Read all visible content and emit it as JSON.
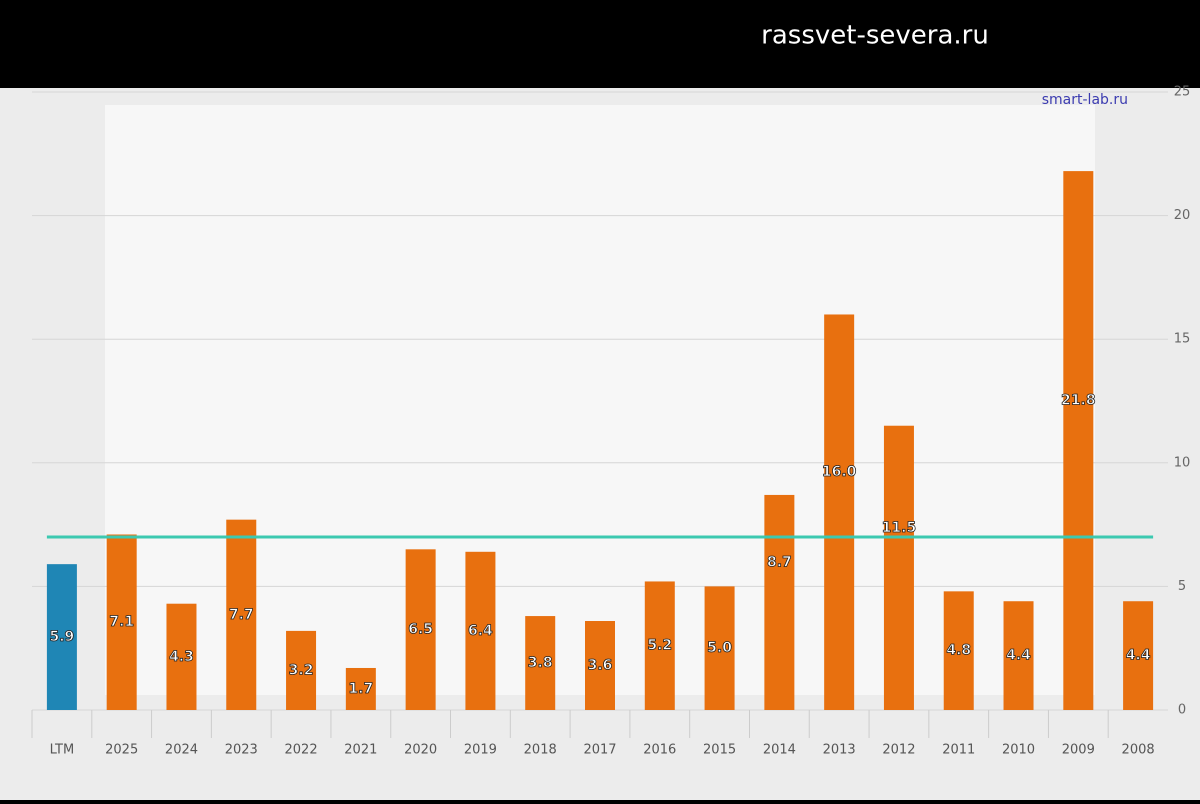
{
  "watermark": "rassvet-severa.ru",
  "chart_data": {
    "type": "bar",
    "source": "smart-lab.ru",
    "categories": [
      "LTM",
      "2025",
      "2024",
      "2023",
      "2022",
      "2021",
      "2020",
      "2019",
      "2018",
      "2017",
      "2016",
      "2015",
      "2014",
      "2013",
      "2012",
      "2011",
      "2010",
      "2009",
      "2008"
    ],
    "values": [
      5.9,
      7.1,
      4.3,
      7.7,
      3.2,
      1.7,
      6.5,
      6.4,
      3.8,
      3.6,
      5.2,
      5.0,
      8.7,
      16.0,
      11.5,
      4.8,
      4.4,
      21.8,
      4.4
    ],
    "value_labels": [
      "5.9",
      "7.1",
      "4.3",
      "7.7",
      "3.2",
      "1.7",
      "6.5",
      "6.4",
      "3.8",
      "3.6",
      "5.2",
      "5.0",
      "8.7",
      "16.0",
      "11.5",
      "4.8",
      "4.4",
      "21.8",
      "4.4"
    ],
    "colors": [
      "#1f86b5",
      "#e8700f",
      "#e8700f",
      "#e8700f",
      "#e8700f",
      "#e8700f",
      "#e8700f",
      "#e8700f",
      "#e8700f",
      "#e8700f",
      "#e8700f",
      "#e8700f",
      "#e8700f",
      "#e8700f",
      "#e8700f",
      "#e8700f",
      "#e8700f",
      "#e8700f",
      "#e8700f"
    ],
    "reference_line": {
      "value": 7,
      "color": "#3cc9b0"
    },
    "ylim": [
      0,
      25
    ],
    "yticks": [
      0,
      5,
      10,
      15,
      20,
      25
    ],
    "grid": true,
    "y_axis_side": "right"
  }
}
